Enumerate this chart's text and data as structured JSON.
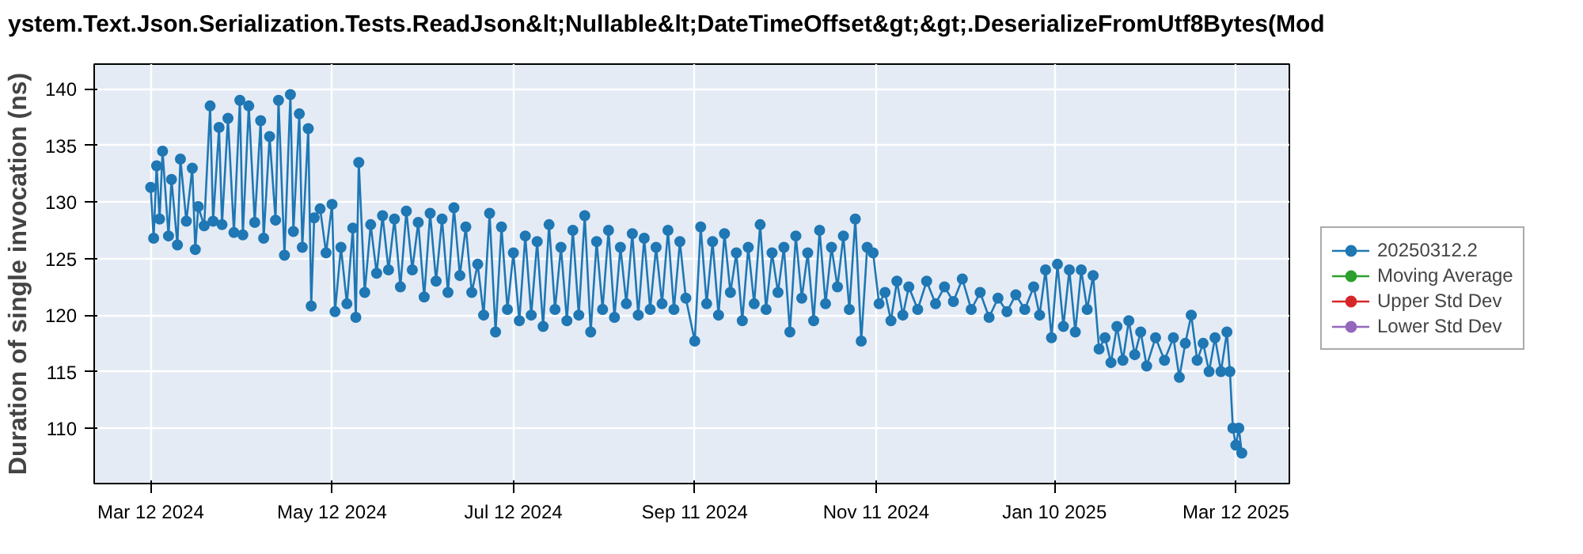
{
  "chart_data": {
    "type": "line",
    "title": "ystem.Text.Json.Serialization.Tests.ReadJson&lt;Nullable&lt;DateTimeOffset&gt;&gt;.DeserializeFromUtf8Bytes(Mod",
    "ylabel": "Duration of single invocation (ns)",
    "xlim": [
      "2024-02-22",
      "2025-03-30"
    ],
    "xticks": [
      {
        "value": "2024-03-12",
        "label": "Mar 12 2024"
      },
      {
        "value": "2024-05-12",
        "label": "May 12 2024"
      },
      {
        "value": "2024-07-12",
        "label": "Jul 12 2024"
      },
      {
        "value": "2024-09-11",
        "label": "Sep 11 2024"
      },
      {
        "value": "2024-11-11",
        "label": "Nov 11 2024"
      },
      {
        "value": "2025-01-10",
        "label": "Jan 10 2025"
      },
      {
        "value": "2025-03-12",
        "label": "Mar 12 2025"
      }
    ],
    "ylim": [
      105.1,
      142.2
    ],
    "yticks": [
      110,
      115,
      120,
      125,
      130,
      135,
      140
    ],
    "grid": true,
    "legend": "right",
    "marker": "circle",
    "line_style": "solid",
    "series": [
      {
        "name": "20250312.2",
        "color": "#1f77b4",
        "x": [
          "2024-03-12",
          "2024-03-13",
          "2024-03-14",
          "2024-03-15",
          "2024-03-16",
          "2024-03-18",
          "2024-03-19",
          "2024-03-21",
          "2024-03-22",
          "2024-03-24",
          "2024-03-26",
          "2024-03-27",
          "2024-03-28",
          "2024-03-30",
          "2024-04-01",
          "2024-04-02",
          "2024-04-04",
          "2024-04-05",
          "2024-04-07",
          "2024-04-09",
          "2024-04-11",
          "2024-04-12",
          "2024-04-14",
          "2024-04-16",
          "2024-04-18",
          "2024-04-19",
          "2024-04-21",
          "2024-04-23",
          "2024-04-24",
          "2024-04-26",
          "2024-04-28",
          "2024-04-29",
          "2024-05-01",
          "2024-05-02",
          "2024-05-04",
          "2024-05-05",
          "2024-05-06",
          "2024-05-08",
          "2024-05-10",
          "2024-05-12",
          "2024-05-13",
          "2024-05-15",
          "2024-05-17",
          "2024-05-19",
          "2024-05-20",
          "2024-05-21",
          "2024-05-23",
          "2024-05-25",
          "2024-05-27",
          "2024-05-29",
          "2024-05-31",
          "2024-06-02",
          "2024-06-04",
          "2024-06-06",
          "2024-06-08",
          "2024-06-10",
          "2024-06-12",
          "2024-06-14",
          "2024-06-16",
          "2024-06-18",
          "2024-06-20",
          "2024-06-22",
          "2024-06-24",
          "2024-06-26",
          "2024-06-28",
          "2024-06-30",
          "2024-07-02",
          "2024-07-04",
          "2024-07-06",
          "2024-07-08",
          "2024-07-10",
          "2024-07-12",
          "2024-07-14",
          "2024-07-16",
          "2024-07-18",
          "2024-07-20",
          "2024-07-22",
          "2024-07-24",
          "2024-07-26",
          "2024-07-28",
          "2024-07-30",
          "2024-08-01",
          "2024-08-03",
          "2024-08-05",
          "2024-08-07",
          "2024-08-09",
          "2024-08-11",
          "2024-08-13",
          "2024-08-15",
          "2024-08-17",
          "2024-08-19",
          "2024-08-21",
          "2024-08-23",
          "2024-08-25",
          "2024-08-27",
          "2024-08-29",
          "2024-08-31",
          "2024-09-02",
          "2024-09-04",
          "2024-09-06",
          "2024-09-08",
          "2024-09-11",
          "2024-09-13",
          "2024-09-15",
          "2024-09-17",
          "2024-09-19",
          "2024-09-21",
          "2024-09-23",
          "2024-09-25",
          "2024-09-27",
          "2024-09-29",
          "2024-10-01",
          "2024-10-03",
          "2024-10-05",
          "2024-10-07",
          "2024-10-09",
          "2024-10-11",
          "2024-10-13",
          "2024-10-15",
          "2024-10-17",
          "2024-10-19",
          "2024-10-21",
          "2024-10-23",
          "2024-10-25",
          "2024-10-27",
          "2024-10-29",
          "2024-10-31",
          "2024-11-02",
          "2024-11-04",
          "2024-11-06",
          "2024-11-08",
          "2024-11-10",
          "2024-11-12",
          "2024-11-14",
          "2024-11-16",
          "2024-11-18",
          "2024-11-20",
          "2024-11-22",
          "2024-11-25",
          "2024-11-28",
          "2024-12-01",
          "2024-12-04",
          "2024-12-07",
          "2024-12-10",
          "2024-12-13",
          "2024-12-16",
          "2024-12-19",
          "2024-12-22",
          "2024-12-25",
          "2024-12-28",
          "2024-12-31",
          "2025-01-03",
          "2025-01-05",
          "2025-01-07",
          "2025-01-09",
          "2025-01-11",
          "2025-01-13",
          "2025-01-15",
          "2025-01-17",
          "2025-01-19",
          "2025-01-21",
          "2025-01-23",
          "2025-01-25",
          "2025-01-27",
          "2025-01-29",
          "2025-01-31",
          "2025-02-02",
          "2025-02-04",
          "2025-02-06",
          "2025-02-08",
          "2025-02-10",
          "2025-02-13",
          "2025-02-16",
          "2025-02-19",
          "2025-02-21",
          "2025-02-23",
          "2025-02-25",
          "2025-02-27",
          "2025-03-01",
          "2025-03-03",
          "2025-03-05",
          "2025-03-07",
          "2025-03-09",
          "2025-03-10",
          "2025-03-11",
          "2025-03-12",
          "2025-03-13",
          "2025-03-14"
        ],
        "values": [
          131.3,
          126.8,
          133.2,
          128.5,
          134.5,
          127.0,
          132.0,
          126.2,
          133.8,
          128.3,
          133.0,
          125.8,
          129.6,
          127.9,
          138.5,
          128.3,
          136.6,
          128.0,
          137.4,
          127.3,
          139.0,
          127.1,
          138.5,
          128.2,
          137.2,
          126.8,
          135.8,
          128.4,
          139.0,
          125.3,
          139.5,
          127.4,
          137.8,
          126.0,
          136.5,
          120.8,
          128.6,
          129.4,
          125.5,
          129.8,
          120.3,
          126.0,
          121.0,
          127.7,
          119.8,
          133.5,
          122.0,
          128.0,
          123.7,
          128.8,
          124.0,
          128.5,
          122.5,
          129.2,
          124.0,
          128.2,
          121.6,
          129.0,
          123.0,
          128.5,
          122.0,
          129.5,
          123.5,
          127.8,
          122.0,
          124.5,
          120.0,
          129.0,
          118.5,
          127.8,
          120.5,
          125.5,
          119.5,
          127.0,
          120.0,
          126.5,
          119.0,
          128.0,
          120.5,
          126.0,
          119.5,
          127.5,
          120.0,
          128.8,
          118.5,
          126.5,
          120.5,
          127.5,
          119.8,
          126.0,
          121.0,
          127.2,
          120.0,
          126.8,
          120.5,
          126.0,
          121.0,
          127.5,
          120.5,
          126.5,
          121.5,
          117.7,
          127.8,
          121.0,
          126.5,
          120.0,
          127.2,
          122.0,
          125.5,
          119.5,
          126.0,
          121.0,
          128.0,
          120.5,
          125.5,
          122.0,
          126.0,
          118.5,
          127.0,
          121.5,
          125.5,
          119.5,
          127.5,
          121.0,
          126.0,
          122.5,
          127.0,
          120.5,
          128.5,
          117.7,
          126.0,
          125.5,
          121.0,
          122.0,
          119.5,
          123.0,
          120.0,
          122.5,
          120.5,
          123.0,
          121.0,
          122.5,
          121.2,
          123.2,
          120.5,
          122.0,
          119.8,
          121.5,
          120.3,
          121.8,
          120.5,
          122.5,
          120.0,
          124.0,
          118.0,
          124.5,
          119.0,
          124.0,
          118.5,
          124.0,
          120.5,
          123.5,
          117.0,
          118.0,
          115.8,
          119.0,
          116.0,
          119.5,
          116.5,
          118.5,
          115.5,
          118.0,
          116.0,
          118.0,
          114.5,
          117.5,
          120.0,
          116.0,
          117.5,
          115.0,
          118.0,
          115.0,
          118.5,
          115.0,
          110.0,
          108.5,
          110.0,
          107.8
        ]
      },
      {
        "name": "Moving Average",
        "color": "#2ca02c"
      },
      {
        "name": "Upper Std Dev",
        "color": "#d62728"
      },
      {
        "name": "Lower Std Dev",
        "color": "#9467bd"
      }
    ]
  }
}
